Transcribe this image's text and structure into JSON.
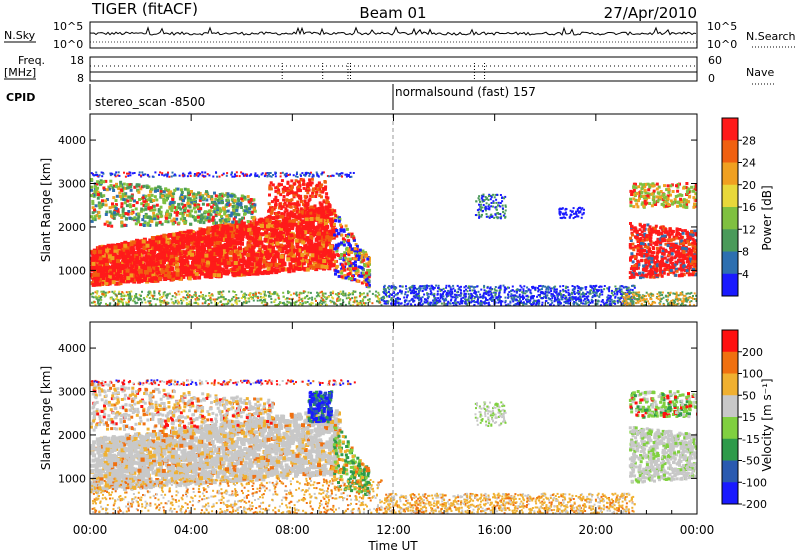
{
  "header": {
    "left_title": "TIGER (fitACF)",
    "center_title": "Beam 01",
    "right_title": "27/Apr/2010"
  },
  "status_panels": {
    "nsky_label": "N.Sky",
    "nsky_ticks": [
      "10^5",
      "10^0"
    ],
    "nsearch_label": "N.Search",
    "freq_label_line1": "Freq.",
    "freq_label_line2": "[MHz]",
    "freq_ticks": [
      "18",
      "8"
    ],
    "nave_ticks": [
      "60",
      "0"
    ],
    "nave_label": "Nave",
    "cpid_label": "CPID",
    "cpid_segments": [
      "stereo_scan -8500",
      "normalsound (fast) 157"
    ]
  },
  "chart_data": [
    {
      "type": "heatmap",
      "name": "power",
      "ylabel": "Slant Range [km]",
      "ylim": [
        180,
        4600
      ],
      "yticks": [
        1000,
        2000,
        3000,
        4000
      ],
      "xlabel": "Time UT",
      "xlim": [
        0,
        24
      ],
      "xticks": [
        "00:00",
        "04:00",
        "08:00",
        "12:00",
        "16:00",
        "20:00",
        "00:00"
      ],
      "colorbar": {
        "label": "Power [dB]",
        "ticks": [
          "4",
          "8",
          "12",
          "16",
          "20",
          "24",
          "28"
        ],
        "colors": [
          "#1a1aff",
          "#2d6fb0",
          "#4a9a5a",
          "#7fc040",
          "#e8d83a",
          "#f0a020",
          "#f06010",
          "#ff1a1a"
        ]
      }
    },
    {
      "type": "heatmap",
      "name": "velocity",
      "ylabel": "Slant Range [km]",
      "ylim": [
        180,
        4600
      ],
      "yticks": [
        1000,
        2000,
        3000,
        4000
      ],
      "xlabel": "Time UT",
      "xlim": [
        0,
        24
      ],
      "xticks": [
        "00:00",
        "04:00",
        "08:00",
        "12:00",
        "16:00",
        "20:00",
        "00:00"
      ],
      "colorbar": {
        "label": "Velocity [m s⁻¹]",
        "ticks": [
          "200",
          "100",
          "50",
          "15",
          "-15",
          "-50",
          "-100",
          "-200"
        ],
        "colors": [
          "#1a1aff",
          "#2a5ab0",
          "#2e9a4a",
          "#80d040",
          "#c8c8c8",
          "#f0b030",
          "#f07010",
          "#ff1010"
        ]
      }
    }
  ]
}
